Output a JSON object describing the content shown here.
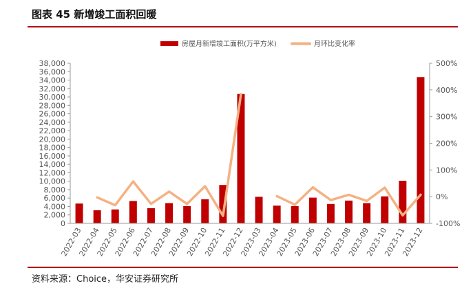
{
  "header": {
    "title": "图表 45 新增竣工面积回暖"
  },
  "footer": {
    "source": "资料来源：Choice，华安证券研究所"
  },
  "colors": {
    "bar": "#c00000",
    "line": "#f4b183",
    "accent_rule": "#b01016",
    "axis": "#999999"
  },
  "chart_data": {
    "type": "bar+line",
    "title": "图表 45 新增竣工面积回暖",
    "categories": [
      "2022-03",
      "2022-04",
      "2022-05",
      "2022-06",
      "2022-07",
      "2022-08",
      "2022-09",
      "2022-10",
      "2022-11",
      "2022-12",
      "2023-03",
      "2023-04",
      "2023-05",
      "2023-06",
      "2023-07",
      "2023-08",
      "2023-09",
      "2023-10",
      "2023-11",
      "2023-12"
    ],
    "series": [
      {
        "name": "房屋月新增竣工面积(万平方米)",
        "type": "bar",
        "axis": "left",
        "values": [
          4700,
          3100,
          3300,
          5300,
          3600,
          4800,
          4100,
          5700,
          9100,
          30700,
          6300,
          4200,
          4100,
          6100,
          4600,
          5400,
          4800,
          6400,
          10100,
          34700
        ]
      },
      {
        "name": "月环比变化率",
        "type": "line",
        "axis": "right",
        "unit": "%",
        "values": [
          null,
          -3,
          -32,
          57,
          -27,
          19,
          -27,
          39,
          -72,
          384,
          null,
          2,
          -30,
          35,
          -13,
          7,
          -16,
          34,
          -70,
          7
        ]
      }
    ],
    "left_axis": {
      "min": 0,
      "max": 38000,
      "step": 2000,
      "tick_labels": [
        "0",
        "2,000",
        "4,000",
        "6,000",
        "8,000",
        "10,000",
        "12,000",
        "14,000",
        "16,000",
        "18,000",
        "20,000",
        "22,000",
        "24,000",
        "26,000",
        "28,000",
        "30,000",
        "32,000",
        "34,000",
        "36,000",
        "38,000"
      ]
    },
    "right_axis": {
      "min": -100,
      "max": 500,
      "step": 100,
      "tick_labels": [
        "-100%",
        "0%",
        "100%",
        "200%",
        "300%",
        "400%",
        "500%"
      ]
    },
    "legend": {
      "position": "top-center",
      "bar_label": "房屋月新增竣工面积(万平方米)",
      "line_label": "月环比变化率"
    },
    "grid": false
  }
}
